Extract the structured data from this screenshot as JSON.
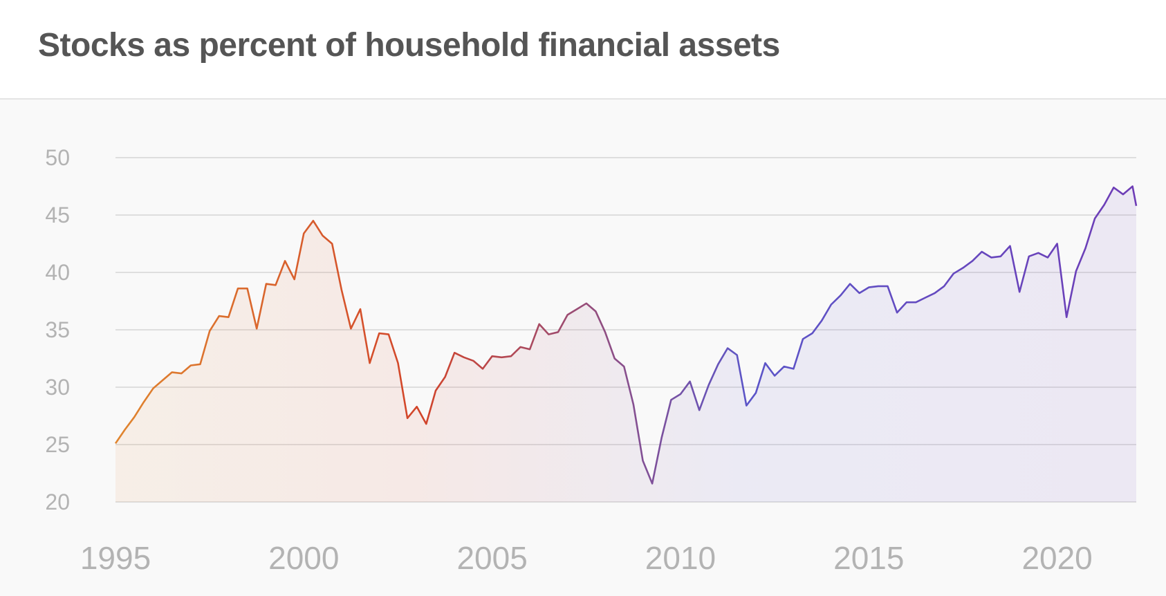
{
  "header": {
    "title": "Stocks as percent of household financial assets"
  },
  "colors": {
    "grid": "#dedede",
    "tick_text": "#b3b3b3",
    "title_text": "#555555",
    "line_gradient": [
      "#e0852f",
      "#d2442a",
      "#5b55c8",
      "#6e3db6"
    ]
  },
  "chart_data": {
    "type": "line",
    "title": "Stocks as percent of household financial assets",
    "xlabel": "",
    "ylabel": "",
    "xlim": [
      1995,
      2022.1
    ],
    "ylim": [
      20,
      50
    ],
    "yticks": [
      "20",
      "25",
      "30",
      "35",
      "40",
      "45",
      "50"
    ],
    "xticks": [
      "1995",
      "2000",
      "2005",
      "2010",
      "2015",
      "2020"
    ],
    "grid": true,
    "legend": "none",
    "series": [
      {
        "points": [
          [
            1995.0,
            25.1
          ],
          [
            1995.25,
            26.3
          ],
          [
            1995.5,
            27.4
          ],
          [
            1995.75,
            28.7
          ],
          [
            1996.0,
            29.9
          ],
          [
            1996.25,
            30.6
          ],
          [
            1996.5,
            31.3
          ],
          [
            1996.75,
            31.2
          ],
          [
            1997.0,
            31.9
          ],
          [
            1997.25,
            32.0
          ],
          [
            1997.5,
            34.9
          ],
          [
            1997.75,
            36.2
          ],
          [
            1998.0,
            36.1
          ],
          [
            1998.25,
            38.6
          ],
          [
            1998.5,
            38.6
          ],
          [
            1998.75,
            35.1
          ],
          [
            1999.0,
            39.0
          ],
          [
            1999.25,
            38.9
          ],
          [
            1999.5,
            41.0
          ],
          [
            1999.75,
            39.4
          ],
          [
            2000.0,
            43.4
          ],
          [
            2000.25,
            44.5
          ],
          [
            2000.5,
            43.2
          ],
          [
            2000.75,
            42.5
          ],
          [
            2001.0,
            38.5
          ],
          [
            2001.25,
            35.1
          ],
          [
            2001.5,
            36.8
          ],
          [
            2001.75,
            32.1
          ],
          [
            2002.0,
            34.7
          ],
          [
            2002.25,
            34.6
          ],
          [
            2002.5,
            32.1
          ],
          [
            2002.75,
            27.3
          ],
          [
            2003.0,
            28.3
          ],
          [
            2003.25,
            26.8
          ],
          [
            2003.5,
            29.7
          ],
          [
            2003.75,
            30.9
          ],
          [
            2004.0,
            33.0
          ],
          [
            2004.25,
            32.6
          ],
          [
            2004.5,
            32.3
          ],
          [
            2004.75,
            31.6
          ],
          [
            2005.0,
            32.7
          ],
          [
            2005.25,
            32.6
          ],
          [
            2005.5,
            32.7
          ],
          [
            2005.75,
            33.5
          ],
          [
            2006.0,
            33.3
          ],
          [
            2006.25,
            35.5
          ],
          [
            2006.5,
            34.6
          ],
          [
            2006.75,
            34.8
          ],
          [
            2007.0,
            36.3
          ],
          [
            2007.25,
            36.8
          ],
          [
            2007.5,
            37.3
          ],
          [
            2007.75,
            36.6
          ],
          [
            2008.0,
            34.8
          ],
          [
            2008.25,
            32.5
          ],
          [
            2008.5,
            31.8
          ],
          [
            2008.75,
            28.5
          ],
          [
            2009.0,
            23.6
          ],
          [
            2009.25,
            21.6
          ],
          [
            2009.5,
            25.6
          ],
          [
            2009.75,
            28.9
          ],
          [
            2010.0,
            29.4
          ],
          [
            2010.25,
            30.5
          ],
          [
            2010.5,
            28.0
          ],
          [
            2010.75,
            30.2
          ],
          [
            2011.0,
            32.0
          ],
          [
            2011.25,
            33.4
          ],
          [
            2011.5,
            32.8
          ],
          [
            2011.75,
            28.4
          ],
          [
            2012.0,
            29.5
          ],
          [
            2012.25,
            32.1
          ],
          [
            2012.5,
            31.0
          ],
          [
            2012.75,
            31.8
          ],
          [
            2013.0,
            31.6
          ],
          [
            2013.25,
            34.2
          ],
          [
            2013.5,
            34.7
          ],
          [
            2013.75,
            35.8
          ],
          [
            2014.0,
            37.2
          ],
          [
            2014.25,
            38.0
          ],
          [
            2014.5,
            39.0
          ],
          [
            2014.75,
            38.2
          ],
          [
            2015.0,
            38.7
          ],
          [
            2015.25,
            38.8
          ],
          [
            2015.5,
            38.8
          ],
          [
            2015.75,
            36.5
          ],
          [
            2016.0,
            37.4
          ],
          [
            2016.25,
            37.4
          ],
          [
            2016.5,
            37.8
          ],
          [
            2016.75,
            38.2
          ],
          [
            2017.0,
            38.8
          ],
          [
            2017.25,
            39.9
          ],
          [
            2017.5,
            40.4
          ],
          [
            2017.75,
            41.0
          ],
          [
            2018.0,
            41.8
          ],
          [
            2018.25,
            41.3
          ],
          [
            2018.5,
            41.4
          ],
          [
            2018.75,
            42.3
          ],
          [
            2019.0,
            38.3
          ],
          [
            2019.25,
            41.4
          ],
          [
            2019.5,
            41.7
          ],
          [
            2019.75,
            41.3
          ],
          [
            2020.0,
            42.5
          ],
          [
            2020.25,
            36.1
          ],
          [
            2020.5,
            40.1
          ],
          [
            2020.75,
            42.1
          ],
          [
            2021.0,
            44.7
          ],
          [
            2021.25,
            45.9
          ],
          [
            2021.5,
            47.4
          ],
          [
            2021.75,
            46.8
          ],
          [
            2022.0,
            47.5
          ],
          [
            2022.1,
            45.8
          ]
        ]
      }
    ]
  }
}
